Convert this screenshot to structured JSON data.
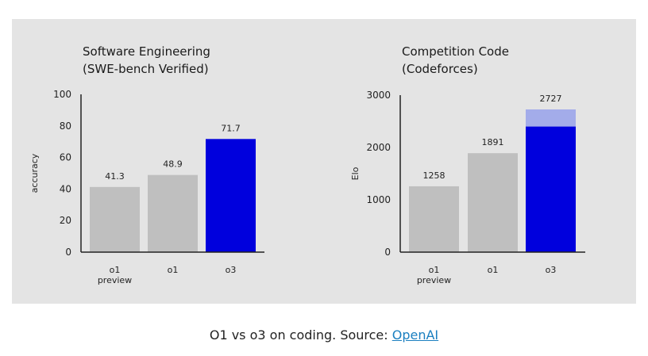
{
  "chart_data": [
    {
      "type": "bar",
      "title": [
        "Software Engineering",
        "(SWE-bench Verified)"
      ],
      "ylabel": "accuracy",
      "xlabel": "",
      "ylim": [
        0,
        100
      ],
      "yticks": [
        0,
        20,
        40,
        60,
        80,
        100
      ],
      "categories": [
        [
          "o1",
          "preview"
        ],
        [
          "o1"
        ],
        [
          "o3"
        ]
      ],
      "values": [
        41.3,
        48.9,
        71.7
      ],
      "data_labels": [
        "41.3",
        "48.9",
        "71.7"
      ],
      "colors": [
        "#bfbfbf",
        "#bfbfbf",
        "#0000dd"
      ],
      "grid": false
    },
    {
      "type": "bar",
      "title": [
        "Competition Code",
        "(Codeforces)"
      ],
      "ylabel": "Elo",
      "xlabel": "",
      "ylim": [
        0,
        3000
      ],
      "yticks": [
        0,
        1000,
        2000,
        3000
      ],
      "categories": [
        [
          "o1",
          "preview"
        ],
        [
          "o1"
        ],
        [
          "o3"
        ]
      ],
      "values": [
        1258,
        1891,
        2727
      ],
      "stacked_base": [
        null,
        null,
        2400
      ],
      "data_labels": [
        "1258",
        "1891",
        "2727"
      ],
      "colors": [
        "#bfbfbf",
        "#bfbfbf",
        "#0000dd"
      ],
      "highlight_top_color": "#a3acea",
      "grid": false
    }
  ],
  "caption": {
    "text": "O1 vs o3 on coding. Source: ",
    "link": "OpenAI",
    "link_color": "#1a7fc0"
  }
}
